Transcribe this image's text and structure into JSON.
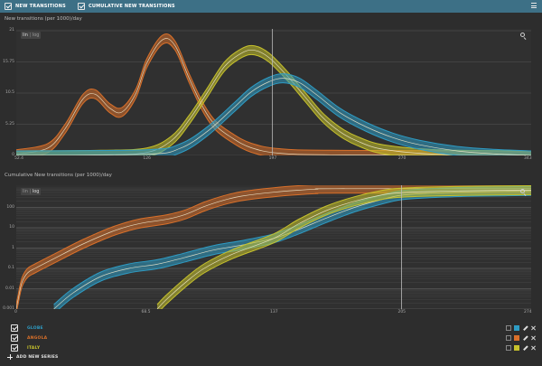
{
  "toolbar": {
    "items": [
      {
        "label": "NEW TRANSITIONS",
        "checked": true
      },
      {
        "label": "CUMULATIVE NEW TRANSITIONS",
        "checked": true
      }
    ],
    "menu_icon": "hamburger-menu-icon",
    "bar_color": "#3d7086"
  },
  "charts": [
    {
      "title": "New transitions (per 1000)/day",
      "scale_toggle": {
        "lin": "lin",
        "sep": "|",
        "log": "log",
        "active": "lin"
      }
    },
    {
      "title": "Cumulative New transitions (per 1000)/day",
      "scale_toggle": {
        "lin": "lin",
        "sep": "|",
        "log": "log",
        "active": "log"
      }
    }
  ],
  "series": [
    {
      "name": "GLOBE",
      "color": "#2e9cc4"
    },
    {
      "name": "ANGOLA",
      "color": "#d9702a"
    },
    {
      "name": "ITALY",
      "color": "#c7c22c"
    }
  ],
  "add_series_label": "ADD NEW SERIES",
  "chart_data": [
    {
      "type": "area",
      "title": "New transitions (per 1000)/day",
      "y_ticks": [
        "21",
        "15.75",
        "10.5",
        "5.25",
        "0"
      ],
      "x_ticks": [
        "52.4",
        "126",
        "197",
        "270",
        "343"
      ],
      "xlim": [
        52.4,
        343
      ],
      "ylim": [
        0,
        21
      ],
      "cursor_x": 197,
      "series": [
        {
          "name": "ANGOLA",
          "x": [
            52.4,
            70,
            80,
            90,
            97,
            105,
            112,
            120,
            126,
            135,
            142,
            150,
            158,
            165,
            175,
            185,
            200,
            230,
            343
          ],
          "y": [
            0.2,
            1.2,
            4.5,
            9.5,
            10.3,
            8,
            7.3,
            10.5,
            15.5,
            19.5,
            18.5,
            13,
            8,
            5,
            2.8,
            1.3,
            0.4,
            0.1,
            0
          ]
        },
        {
          "name": "ITALY",
          "x": [
            52.4,
            100,
            126,
            140,
            150,
            160,
            170,
            180,
            187,
            195,
            205,
            215,
            225,
            235,
            245,
            260,
            290,
            343
          ],
          "y": [
            0,
            0.1,
            0.5,
            2.5,
            6,
            10.5,
            15,
            17.3,
            17.7,
            16.5,
            13.5,
            10,
            6.5,
            4,
            2.4,
            1,
            0.2,
            0
          ]
        },
        {
          "name": "GLOBE",
          "x": [
            52.4,
            126,
            145,
            160,
            175,
            185,
            195,
            203,
            212,
            222,
            235,
            250,
            265,
            280,
            300,
            320,
            343
          ],
          "y": [
            0,
            0.2,
            1.2,
            4,
            8,
            10.7,
            12.4,
            13,
            12.3,
            10.2,
            7.2,
            4.8,
            3,
            1.8,
            0.8,
            0.3,
            0
          ]
        }
      ]
    },
    {
      "type": "area",
      "title": "Cumulative New transitions (per 1000)/day",
      "y_scale": "log",
      "y_ticks": [
        "100",
        "10",
        "1",
        "0.1",
        "0.01",
        "0.001"
      ],
      "x_ticks": [
        "0",
        "68.5",
        "137",
        "205",
        "274"
      ],
      "xlim": [
        0,
        274
      ],
      "ylim": [
        0.001,
        1000
      ],
      "cursor_x": 205,
      "series": [
        {
          "name": "ANGOLA",
          "x": [
            0,
            1,
            3,
            6,
            10,
            20,
            35,
            50,
            60,
            68.5,
            80,
            90,
            100,
            110,
            120,
            137,
            150,
            160,
            170,
            274
          ],
          "y": [
            0.001,
            0.003,
            0.02,
            0.06,
            0.1,
            0.3,
            1.5,
            6,
            12,
            18,
            26,
            45,
            110,
            220,
            360,
            560,
            700,
            790,
            830,
            850
          ]
        },
        {
          "name": "GLOBE",
          "x": [
            20,
            30,
            45,
            60,
            75,
            90,
            105,
            120,
            137,
            150,
            165,
            180,
            195,
            205,
            220,
            240,
            260,
            274
          ],
          "y": [
            0.001,
            0.006,
            0.04,
            0.1,
            0.16,
            0.35,
            0.8,
            1.4,
            3,
            8,
            30,
            100,
            250,
            400,
            500,
            580,
            620,
            650
          ]
        },
        {
          "name": "ITALY",
          "x": [
            75,
            80,
            90,
            100,
            115,
            137,
            150,
            165,
            180,
            195,
            205,
            220,
            240,
            274
          ],
          "y": [
            0.001,
            0.003,
            0.02,
            0.1,
            0.5,
            3,
            15,
            70,
            200,
            420,
            530,
            600,
            660,
            700
          ]
        }
      ]
    }
  ]
}
